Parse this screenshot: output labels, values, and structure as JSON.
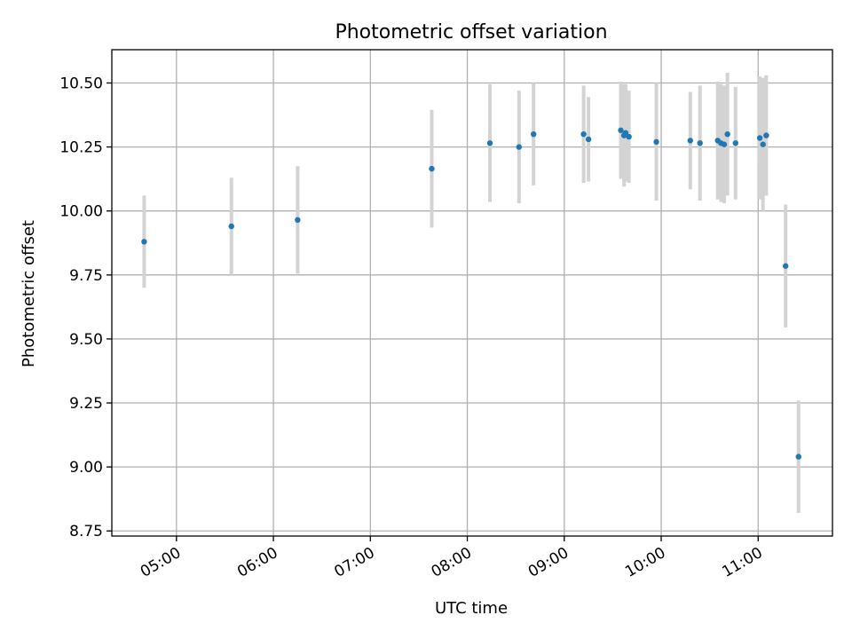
{
  "chart_data": {
    "type": "scatter",
    "title": "Photometric offset variation",
    "xlabel": "UTC time",
    "ylabel": "Photometric offset",
    "x_ticks": [
      "05:00",
      "06:00",
      "07:00",
      "08:00",
      "09:00",
      "10:00",
      "11:00"
    ],
    "y_ticks": [
      "8.75",
      "9.00",
      "9.25",
      "9.50",
      "9.75",
      "10.00",
      "10.25",
      "10.50"
    ],
    "xlim": [
      "04:20",
      "11:46"
    ],
    "ylim": [
      8.73,
      10.63
    ],
    "grid": true,
    "colors": {
      "point": "#1f77b4",
      "errorbar": "#d3d3d3",
      "grid": "#b0b0b0"
    },
    "points": [
      {
        "x": "04:40",
        "y": 9.88,
        "err": 0.18
      },
      {
        "x": "05:34",
        "y": 9.94,
        "err": 0.19
      },
      {
        "x": "06:15",
        "y": 9.965,
        "err": 0.21
      },
      {
        "x": "07:38",
        "y": 10.165,
        "err": 0.23
      },
      {
        "x": "08:14",
        "y": 10.265,
        "err": 0.23
      },
      {
        "x": "08:32",
        "y": 10.25,
        "err": 0.22
      },
      {
        "x": "08:41",
        "y": 10.3,
        "err": 0.2
      },
      {
        "x": "09:12",
        "y": 10.3,
        "err": 0.19
      },
      {
        "x": "09:15",
        "y": 10.28,
        "err": 0.165
      },
      {
        "x": "09:35",
        "y": 10.315,
        "err": 0.19
      },
      {
        "x": "09:37",
        "y": 10.295,
        "err": 0.2
      },
      {
        "x": "09:38",
        "y": 10.305,
        "err": 0.19
      },
      {
        "x": "09:40",
        "y": 10.29,
        "err": 0.18
      },
      {
        "x": "09:57",
        "y": 10.27,
        "err": 0.23
      },
      {
        "x": "10:18",
        "y": 10.275,
        "err": 0.19
      },
      {
        "x": "10:24",
        "y": 10.265,
        "err": 0.225
      },
      {
        "x": "10:35",
        "y": 10.275,
        "err": 0.23
      },
      {
        "x": "10:37",
        "y": 10.265,
        "err": 0.23
      },
      {
        "x": "10:39",
        "y": 10.26,
        "err": 0.23
      },
      {
        "x": "10:41",
        "y": 10.3,
        "err": 0.24
      },
      {
        "x": "10:46",
        "y": 10.265,
        "err": 0.22
      },
      {
        "x": "11:01",
        "y": 10.285,
        "err": 0.24
      },
      {
        "x": "11:03",
        "y": 10.26,
        "err": 0.26
      },
      {
        "x": "11:05",
        "y": 10.295,
        "err": 0.235
      },
      {
        "x": "11:17",
        "y": 9.785,
        "err": 0.24
      },
      {
        "x": "11:25",
        "y": 9.04,
        "err": 0.22
      }
    ]
  }
}
